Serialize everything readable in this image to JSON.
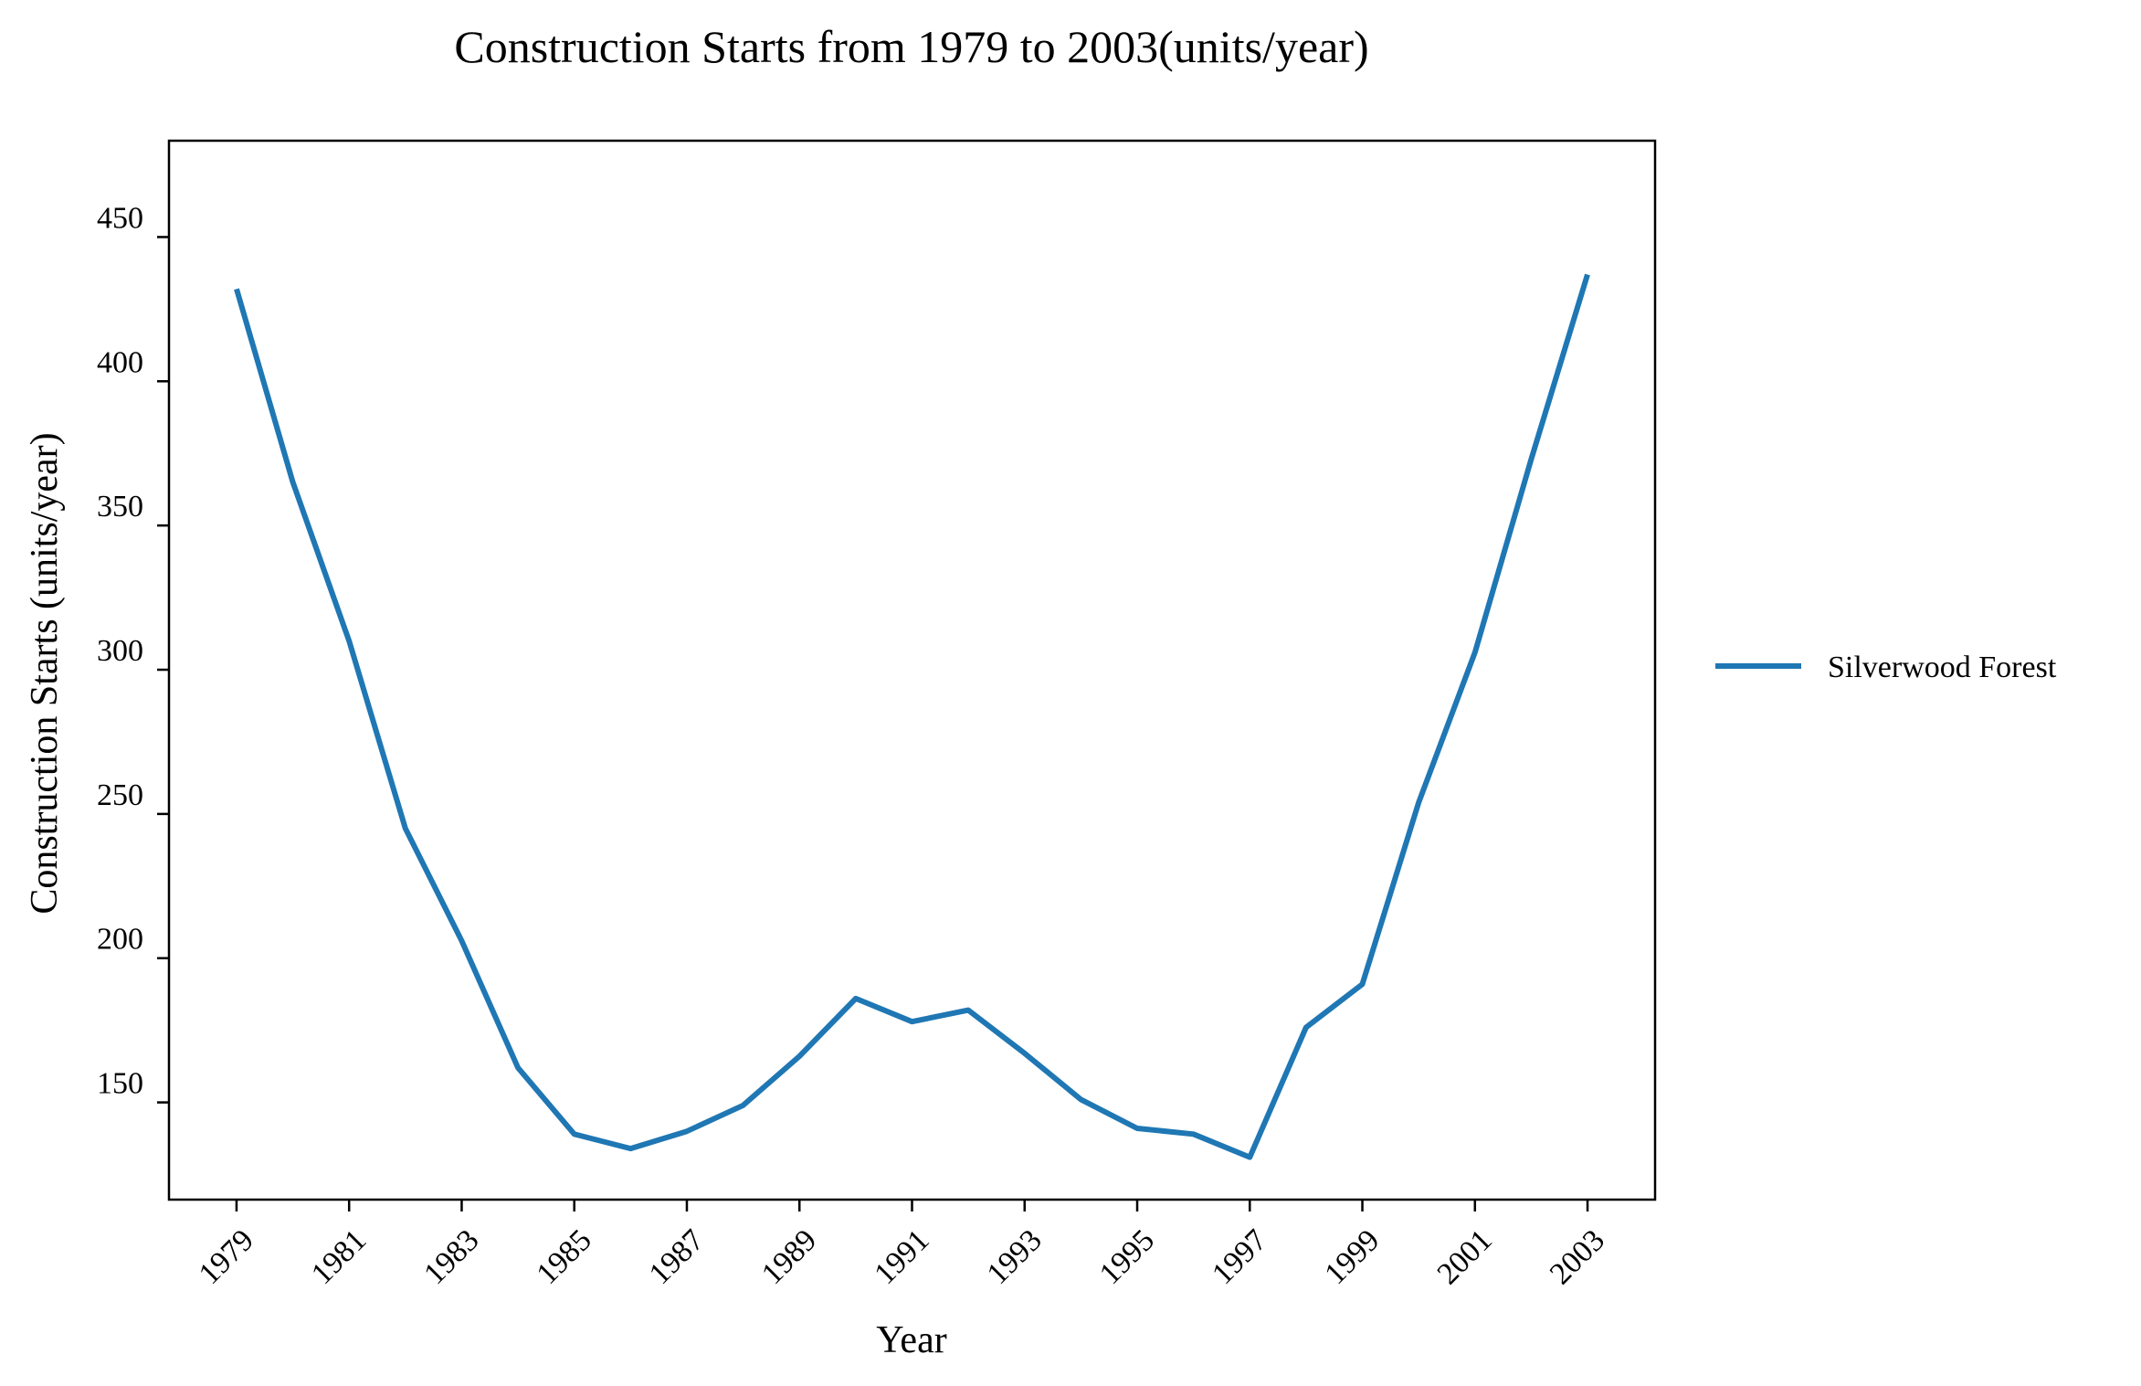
{
  "chart_data": {
    "type": "line",
    "title": "Construction Starts from 1979 to 2003(units/year)",
    "xlabel": "Year",
    "ylabel": "Construction Starts (units/year)",
    "x": [
      1979,
      1980,
      1981,
      1982,
      1983,
      1984,
      1985,
      1986,
      1987,
      1988,
      1989,
      1990,
      1991,
      1992,
      1993,
      1994,
      1995,
      1996,
      1997,
      1998,
      1999,
      2000,
      2001,
      2002,
      2003
    ],
    "x_ticks": [
      "1979",
      "1981",
      "1983",
      "1985",
      "1987",
      "1989",
      "1991",
      "1993",
      "1995",
      "1997",
      "1999",
      "2001",
      "2003"
    ],
    "y_ticks": [
      "150",
      "200",
      "250",
      "300",
      "350",
      "400",
      "450"
    ],
    "xlim": [
      1977.8,
      2004.2
    ],
    "ylim": [
      116.3,
      483.4
    ],
    "grid": false,
    "legend_position": "right",
    "series": [
      {
        "name": "Silverwood Forest",
        "color": "#1f77b4",
        "values": [
          432,
          365,
          310,
          245,
          206,
          162,
          139,
          134,
          140,
          149,
          166,
          186,
          178,
          182,
          167,
          151,
          141,
          139,
          131,
          176,
          191,
          254,
          306,
          373,
          437
        ]
      }
    ]
  }
}
